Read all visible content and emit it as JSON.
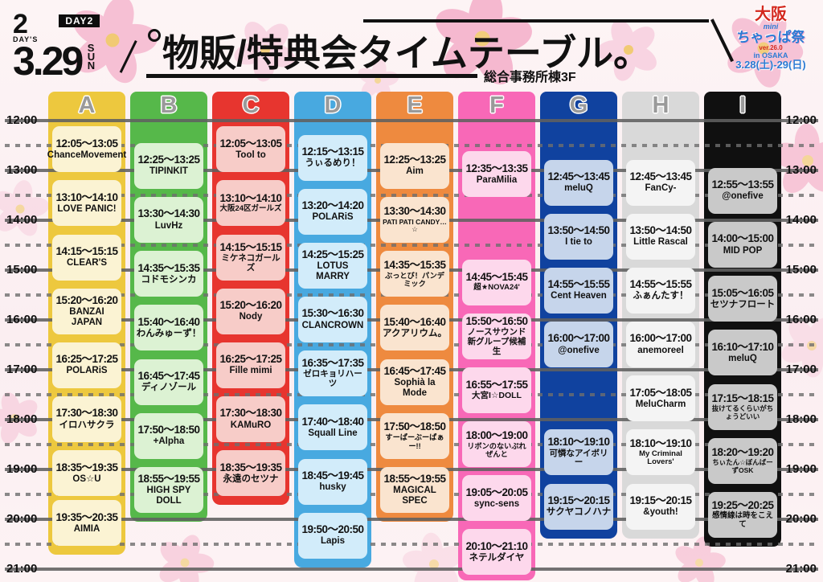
{
  "header": {
    "badge_2days_top": "2",
    "badge_2days_bottom": "DAY'S",
    "badge_day2": "DAY2",
    "date": "3.29",
    "weekday": "SUN",
    "title": "物販/特典会タイムテーブル。",
    "subtitle": "総合事務所棟3F",
    "logo": {
      "city": "大阪",
      "mini": "mini",
      "name": "ちゃっぱ祭",
      "version": "ver.26.0",
      "location": "in OSAKA",
      "dates": "3.28(土)-29(日)"
    }
  },
  "time_axis": {
    "labels": [
      "12:00",
      "13:00",
      "14:00",
      "15:00",
      "16:00",
      "17:00",
      "18:00",
      "19:00",
      "20:00",
      "21:00"
    ]
  },
  "columns": [
    {
      "label": "A",
      "color": "#edc83e",
      "block_bg": "#fbf3d3",
      "entries": [
        {
          "time": "12:05〜13:05",
          "name": "ChanceMovement"
        },
        {
          "time": "13:10〜14:10",
          "name": "LOVE PANIC!"
        },
        {
          "time": "14:15〜15:15",
          "name": "CLEAR'S"
        },
        {
          "time": "15:20〜16:20",
          "name": "BANZAI JAPAN"
        },
        {
          "time": "16:25〜17:25",
          "name": "POLARiS"
        },
        {
          "time": "17:30〜18:30",
          "name": "イロハサクラ"
        },
        {
          "time": "18:35〜19:35",
          "name": "OS☆U"
        },
        {
          "time": "19:35〜20:35",
          "name": "AIMIA"
        }
      ]
    },
    {
      "label": "B",
      "color": "#56b84a",
      "block_bg": "#dcf2d3",
      "entries": [
        {
          "time": "12:25〜13:25",
          "name": "TIPINKIT"
        },
        {
          "time": "13:30〜14:30",
          "name": "LuvHz"
        },
        {
          "time": "14:35〜15:35",
          "name": "コドモシンカ"
        },
        {
          "time": "15:40〜16:40",
          "name": "わんみゅーず！"
        },
        {
          "time": "16:45〜17:45",
          "name": "ディノゾール"
        },
        {
          "time": "17:50〜18:50",
          "name": "+Alpha"
        },
        {
          "time": "18:55〜19:55",
          "name": "HIGH SPY DOLL"
        }
      ]
    },
    {
      "label": "C",
      "color": "#e7352f",
      "block_bg": "#f7ccc8",
      "entries": [
        {
          "time": "12:05〜13:05",
          "name": "Tool to"
        },
        {
          "time": "13:10〜14:10",
          "name": "大阪24区ガールズ"
        },
        {
          "time": "14:15〜15:15",
          "name": "ミケネコガールズ"
        },
        {
          "time": "15:20〜16:20",
          "name": "Nody"
        },
        {
          "time": "16:25〜17:25",
          "name": "Fille mimi"
        },
        {
          "time": "17:30〜18:30",
          "name": "KAMuRO"
        },
        {
          "time": "18:35〜19:35",
          "name": "永遠のセツナ"
        }
      ]
    },
    {
      "label": "D",
      "color": "#48a9e0",
      "block_bg": "#d2ecfa",
      "entries": [
        {
          "time": "12:15〜13:15",
          "name": "うぃるめり！"
        },
        {
          "time": "13:20〜14:20",
          "name": "POLARiS"
        },
        {
          "time": "14:25〜15:25",
          "name": "LOTUS MARRY"
        },
        {
          "time": "15:30〜16:30",
          "name": "CLANCROWN"
        },
        {
          "time": "16:35〜17:35",
          "name": "ゼロキョリハーツ"
        },
        {
          "time": "17:40〜18:40",
          "name": "Squall Line"
        },
        {
          "time": "18:45〜19:45",
          "name": "husky"
        },
        {
          "time": "19:50〜20:50",
          "name": "Lapis"
        }
      ]
    },
    {
      "label": "E",
      "color": "#ee8a3f",
      "block_bg": "#fae4cf",
      "entries": [
        {
          "time": "12:25〜13:25",
          "name": "Aim"
        },
        {
          "time": "13:30〜14:30",
          "name": "PATI PATI CANDY…☆"
        },
        {
          "time": "14:35〜15:35",
          "name": "ぶっとび！パンデミック"
        },
        {
          "time": "15:40〜16:40",
          "name": "アクアリウム。"
        },
        {
          "time": "16:45〜17:45",
          "name": "Sophià la Mode"
        },
        {
          "time": "17:50〜18:50",
          "name": "すーぱーぶーぱぁー!!"
        },
        {
          "time": "18:55〜19:55",
          "name": "MAGICAL SPEC"
        }
      ]
    },
    {
      "label": "F",
      "color": "#f868b7",
      "block_bg": "#fdd8ec",
      "entries": [
        {
          "time": "12:35〜13:35",
          "name": "ParaMilia"
        },
        {
          "time": "14:45〜15:45",
          "name": "超★NOVA24'"
        },
        {
          "time": "15:50〜16:50",
          "name": "ノースサウンド\n新グループ候補生"
        },
        {
          "time": "16:55〜17:55",
          "name": "大宮I☆DOLL"
        },
        {
          "time": "18:00〜19:00",
          "name": "リボンのないぷれぜんと"
        },
        {
          "time": "19:05〜20:05",
          "name": "sync-sens"
        },
        {
          "time": "20:10〜21:10",
          "name": "ネテルダイヤ"
        }
      ]
    },
    {
      "label": "G",
      "color": "#10429f",
      "block_bg": "#c6d5eb",
      "entries": [
        {
          "time": "12:45〜13:45",
          "name": "meluQ"
        },
        {
          "time": "13:50〜14:50",
          "name": "I tie to"
        },
        {
          "time": "14:55〜15:55",
          "name": "Cent Heaven"
        },
        {
          "time": "16:00〜17:00",
          "name": "@onefive"
        },
        {
          "time": "18:10〜19:10",
          "name": "可憐なアイボリー"
        },
        {
          "time": "19:15〜20:15",
          "name": "サクヤコノハナ"
        }
      ]
    },
    {
      "label": "H",
      "color": "#d9d9d9",
      "block_bg": "#f4f4f4",
      "entries": [
        {
          "time": "12:45〜13:45",
          "name": "FanCy-"
        },
        {
          "time": "13:50〜14:50",
          "name": "Little Rascal"
        },
        {
          "time": "14:55〜15:55",
          "name": "ふぁんたす！"
        },
        {
          "time": "16:00〜17:00",
          "name": "anemoreel"
        },
        {
          "time": "17:05〜18:05",
          "name": "MeluCharm"
        },
        {
          "time": "18:10〜19:10",
          "name": "My Criminal Lovers'"
        },
        {
          "time": "19:15〜20:15",
          "name": "&youth!"
        }
      ]
    },
    {
      "label": "I",
      "color": "#101010",
      "block_bg": "#c9c9c9",
      "entries": [
        {
          "time": "12:55〜13:55",
          "name": "@onefive"
        },
        {
          "time": "14:00〜15:00",
          "name": "MID POP"
        },
        {
          "time": "15:05〜16:05",
          "name": "セツナフロート"
        },
        {
          "time": "16:10〜17:10",
          "name": "meluQ"
        },
        {
          "time": "17:15〜18:15",
          "name": "抜けてるくらいがちょうどいい"
        },
        {
          "time": "18:20〜19:20",
          "name": "ちぃたん☆ぼんばーずOSK"
        },
        {
          "time": "19:25〜20:25",
          "name": "感情線は時をこえて"
        }
      ]
    }
  ]
}
